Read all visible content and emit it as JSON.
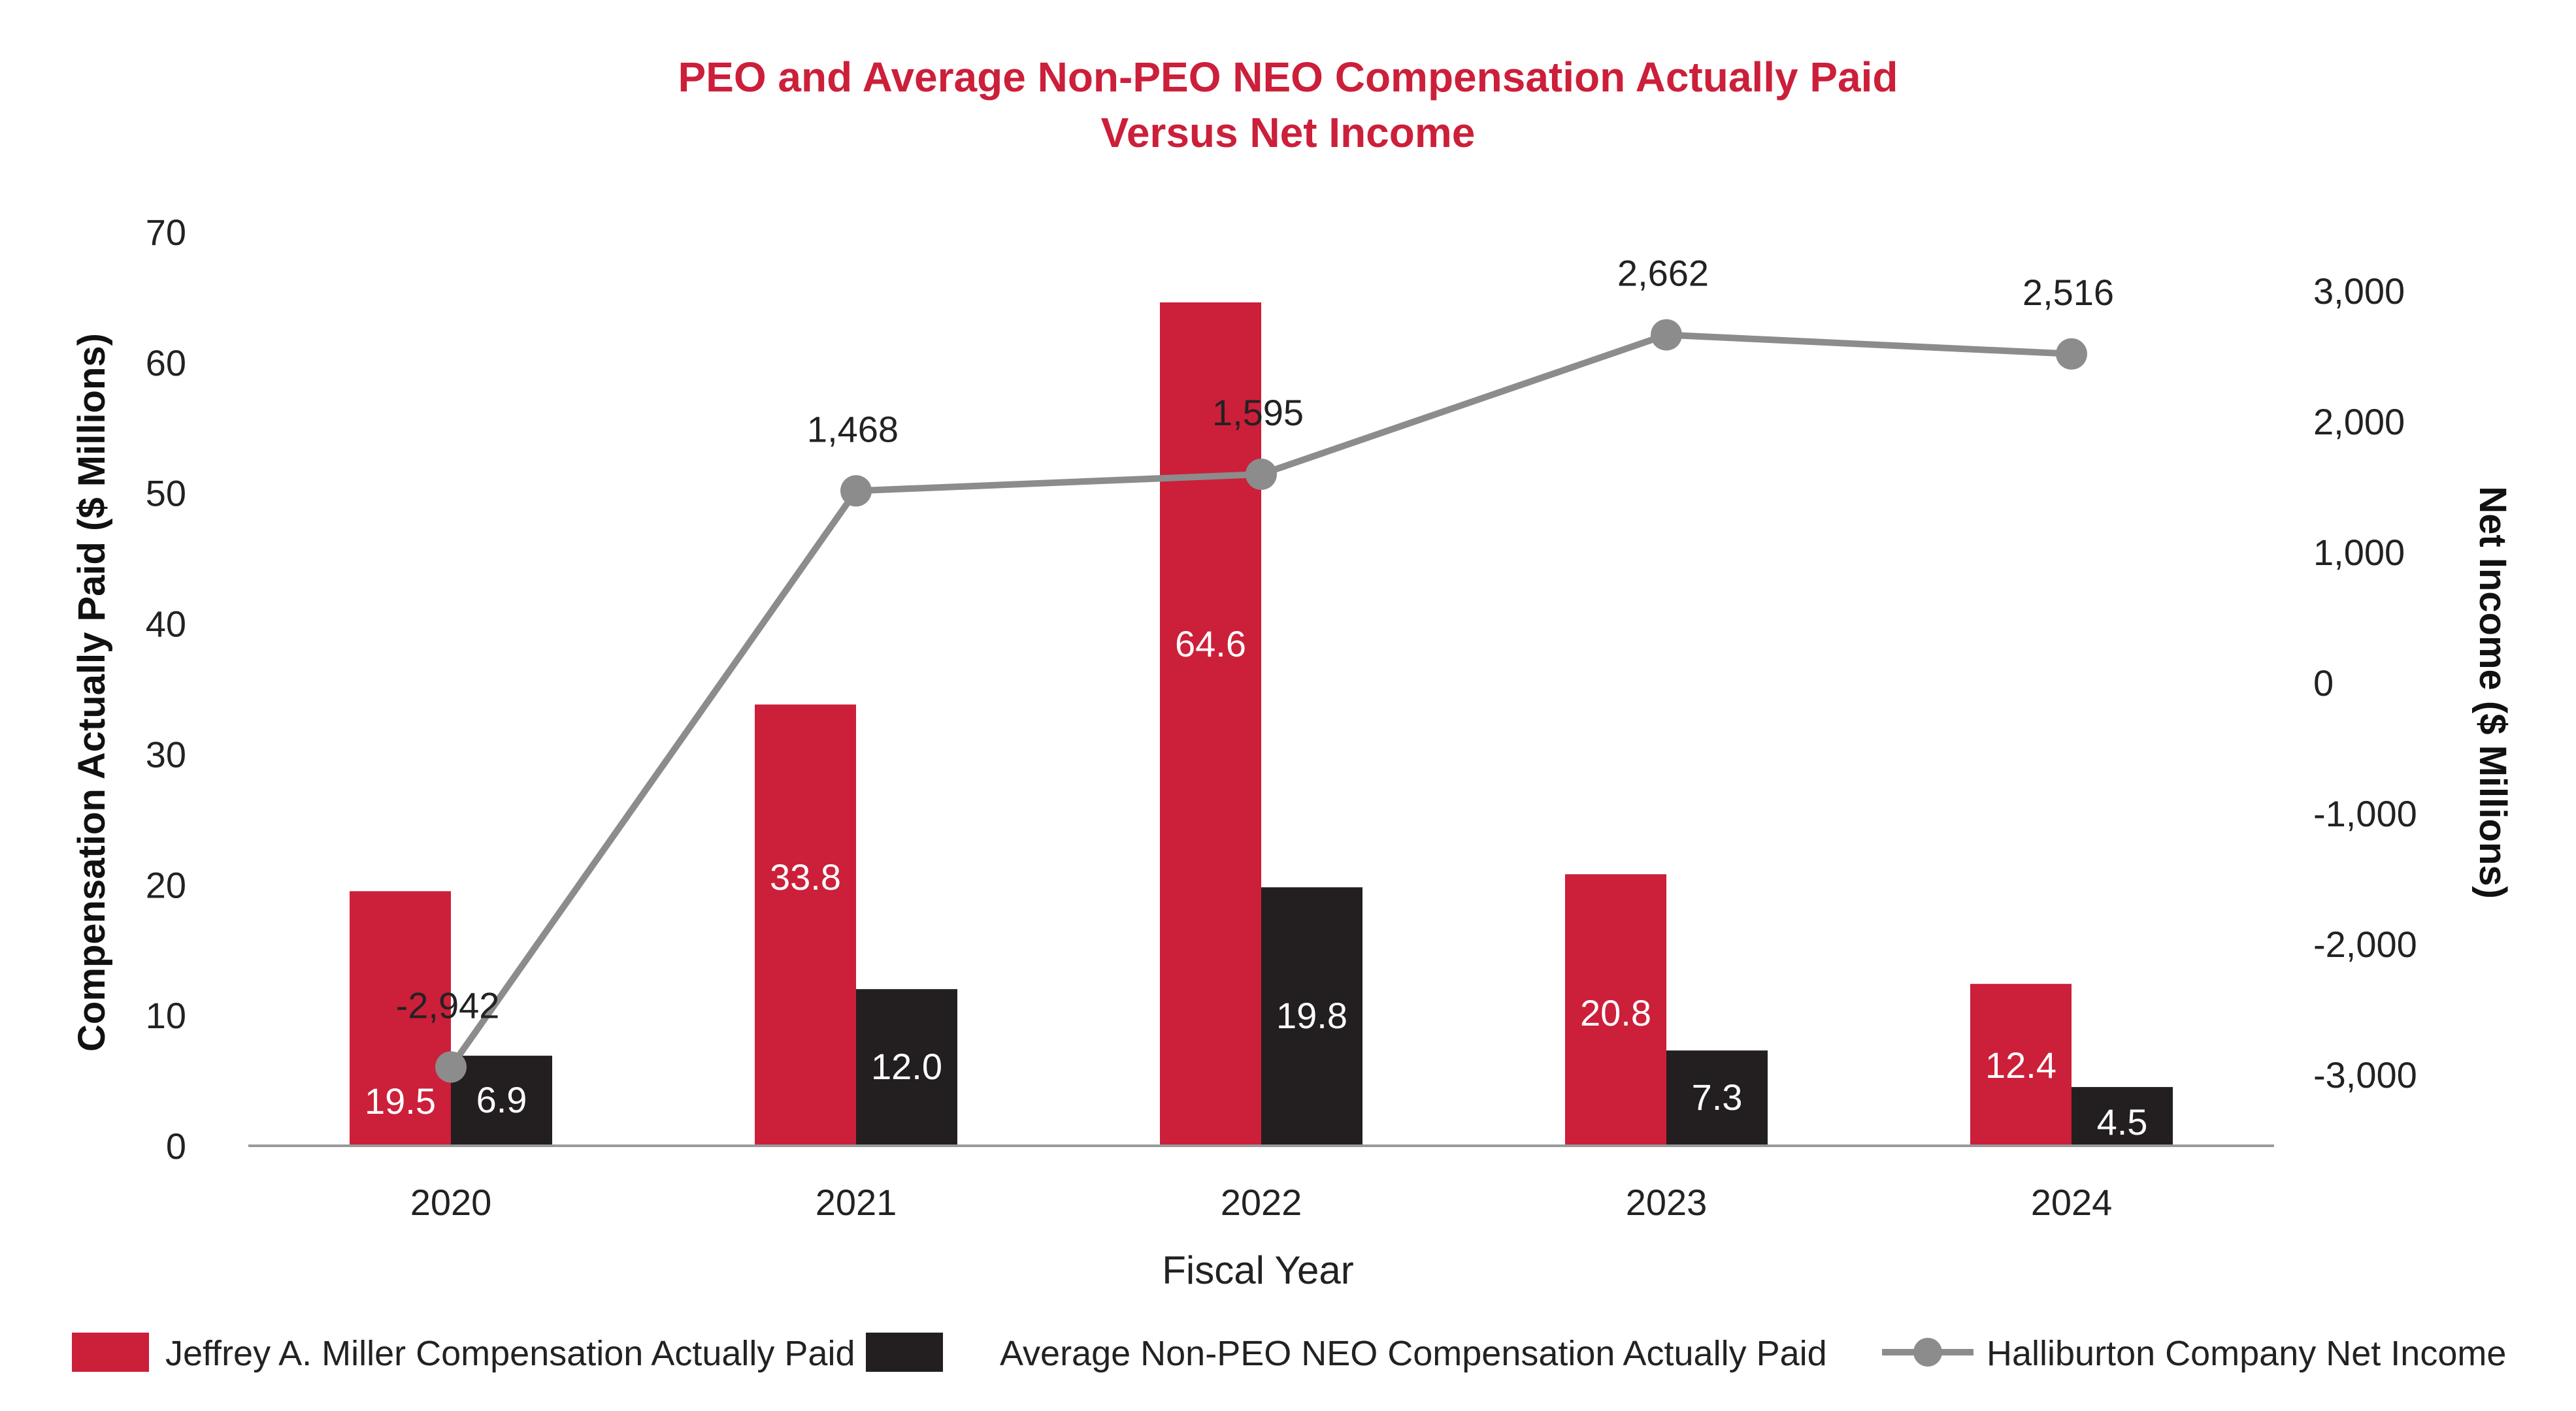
{
  "colors": {
    "peo": "#cc1f3a",
    "neo": "#231f20",
    "net_income": "#8c8c8c",
    "title": "#cc1f3a",
    "axis": "#999999"
  },
  "chart_data": {
    "type": "bar",
    "title_lines": [
      "PEO and Average Non-PEO NEO Compensation Actually Paid",
      "Versus Net Income"
    ],
    "xlabel": "Fiscal Year",
    "ylabel": "Compensation Actually Paid ($ Millions)",
    "y2label": "Net Income ($ Millions)",
    "categories": [
      "2020",
      "2021",
      "2022",
      "2023",
      "2024"
    ],
    "ylim": [
      0,
      70
    ],
    "yticks": [
      "0",
      "10",
      "20",
      "30",
      "40",
      "50",
      "60",
      "70"
    ],
    "y2lim": [
      -3500,
      3500
    ],
    "y2ticks": [
      {
        "value": 3000,
        "label": "3,000"
      },
      {
        "value": 2000,
        "label": "2,000"
      },
      {
        "value": 1000,
        "label": "1,000"
      },
      {
        "value": 0,
        "label": "0"
      },
      {
        "value": -1000,
        "label": "-1,000"
      },
      {
        "value": -2000,
        "label": "-2,000"
      },
      {
        "value": -3000,
        "label": "-3,000"
      }
    ],
    "series": [
      {
        "name": "Jeffrey A. Miller Compensation Actually Paid",
        "type": "bar",
        "axis": "left",
        "values": [
          19.5,
          33.8,
          64.6,
          20.8,
          12.4
        ],
        "labels": [
          "19.5",
          "33.8",
          "64.6",
          "20.8",
          "12.4"
        ]
      },
      {
        "name": "Average Non-PEO NEO Compensation Actually Paid",
        "type": "bar",
        "axis": "left",
        "values": [
          6.9,
          12.0,
          19.8,
          7.3,
          4.5
        ],
        "labels": [
          "6.9",
          "12.0",
          "19.8",
          "7.3",
          "4.5"
        ]
      },
      {
        "name": "Halliburton Company Net Income",
        "type": "line",
        "axis": "right",
        "values": [
          -2942,
          1468,
          1595,
          2662,
          2516
        ],
        "labels": [
          "-2,942",
          "1,468",
          "1,595",
          "2,662",
          "2,516"
        ]
      }
    ],
    "legend_position": "bottom"
  }
}
